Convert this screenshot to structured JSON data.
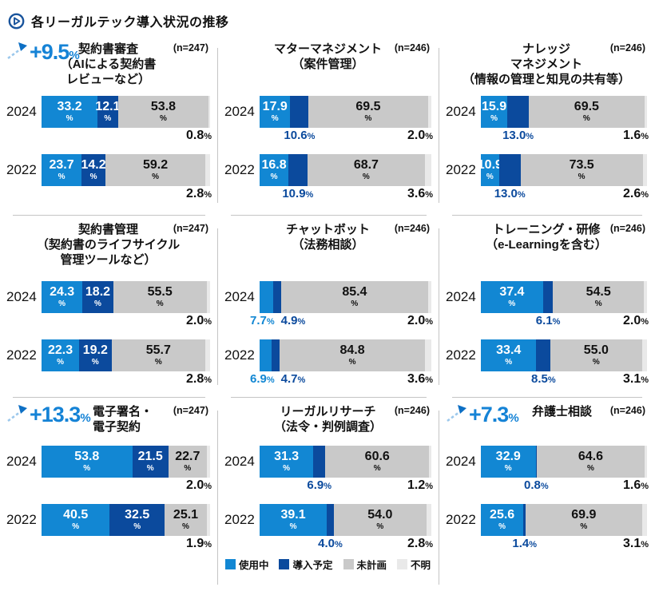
{
  "page": {
    "title": "各リーガルテック導入状況の推移"
  },
  "colors": {
    "in_use": "#1287d3",
    "planned": "#0b4a9d",
    "not_planned": "#c9c9c9",
    "unknown": "#e9e9e9",
    "delta_text": "#1583d6",
    "divider": "#c5c5c5",
    "icon_blue": "#19549c"
  },
  "legend": {
    "items": [
      {
        "label": "使用中",
        "color": "#1287d3"
      },
      {
        "label": "導入予定",
        "color": "#0b4a9d"
      },
      {
        "label": "未計画",
        "color": "#c9c9c9"
      },
      {
        "label": "不明",
        "color": "#e9e9e9"
      }
    ]
  },
  "chart_data": {
    "type": "bar",
    "stacked": true,
    "orientation": "horizontal",
    "unit": "%",
    "categories": [
      "使用中",
      "導入予定",
      "未計画",
      "不明"
    ],
    "panels": [
      {
        "title_lines": [
          "契約書審査",
          "（AIによる契約書",
          "レビューなど）"
        ],
        "n_label": "(n=247)",
        "delta": "+9.5%",
        "label_mode": [
          "inside",
          "inside"
        ],
        "rows": [
          {
            "year": "2024",
            "values": [
              "33.2",
              "12.1",
              "53.8",
              "0.8"
            ]
          },
          {
            "year": "2022",
            "values": [
              "23.7",
              "14.2",
              "59.2",
              "2.8"
            ]
          }
        ]
      },
      {
        "title_lines": [
          "マターマネジメント",
          "（案件管理）"
        ],
        "n_label": "(n=246)",
        "delta": null,
        "label_mode": [
          "inside",
          "below"
        ],
        "rows": [
          {
            "year": "2024",
            "values": [
              "17.9",
              "10.6",
              "69.5",
              "2.0"
            ]
          },
          {
            "year": "2022",
            "values": [
              "16.8",
              "10.9",
              "68.7",
              "3.6"
            ]
          }
        ]
      },
      {
        "title_lines": [
          "ナレッジ",
          "マネジメント",
          "（情報の管理と知見の共有等）"
        ],
        "n_label": "(n=246)",
        "delta": null,
        "label_mode": [
          "inside",
          "below"
        ],
        "rows": [
          {
            "year": "2024",
            "values": [
              "15.9",
              "13.0",
              "69.5",
              "1.6"
            ]
          },
          {
            "year": "2022",
            "values": [
              "10.9",
              "13.0",
              "73.5",
              "2.6"
            ]
          }
        ]
      },
      {
        "title_lines": [
          "契約書管理",
          "（契約書のライフサイクル",
          "管理ツールなど）"
        ],
        "n_label": "(n=247)",
        "delta": null,
        "label_mode": [
          "inside",
          "inside"
        ],
        "rows": [
          {
            "year": "2024",
            "values": [
              "24.3",
              "18.2",
              "55.5",
              "2.0"
            ]
          },
          {
            "year": "2022",
            "values": [
              "22.3",
              "19.2",
              "55.7",
              "2.8"
            ]
          }
        ]
      },
      {
        "title_lines": [
          "チャットボット",
          "（法務相談）"
        ],
        "n_label": "(n=246)",
        "delta": null,
        "label_mode": [
          "below",
          "below"
        ],
        "rows": [
          {
            "year": "2024",
            "values": [
              "7.7",
              "4.9",
              "85.4",
              "2.0"
            ]
          },
          {
            "year": "2022",
            "values": [
              "6.9",
              "4.7",
              "84.8",
              "3.6"
            ]
          }
        ]
      },
      {
        "title_lines": [
          "トレーニング・研修",
          "（e-Learningを含む）"
        ],
        "n_label": "(n=246)",
        "delta": null,
        "label_mode": [
          "inside",
          "below"
        ],
        "rows": [
          {
            "year": "2024",
            "values": [
              "37.4",
              "6.1",
              "54.5",
              "2.0"
            ]
          },
          {
            "year": "2022",
            "values": [
              "33.4",
              "8.5",
              "55.0",
              "3.1"
            ]
          }
        ]
      },
      {
        "title_lines": [
          "電子署名・",
          "電子契約"
        ],
        "n_label": "(n=247)",
        "delta": "+13.3%",
        "label_mode": [
          "inside",
          "inside"
        ],
        "rows": [
          {
            "year": "2024",
            "values": [
              "53.8",
              "21.5",
              "22.7",
              "2.0"
            ]
          },
          {
            "year": "2022",
            "values": [
              "40.5",
              "32.5",
              "25.1",
              "1.9"
            ]
          }
        ]
      },
      {
        "title_lines": [
          "リーガルリサーチ",
          "（法令・判例調査）"
        ],
        "n_label": "(n=246)",
        "delta": null,
        "label_mode": [
          "inside",
          "below"
        ],
        "show_legend": true,
        "rows": [
          {
            "year": "2024",
            "values": [
              "31.3",
              "6.9",
              "60.6",
              "1.2"
            ]
          },
          {
            "year": "2022",
            "values": [
              "39.1",
              "4.0",
              "54.0",
              "2.8"
            ]
          }
        ]
      },
      {
        "title_lines": [
          "弁護士相談"
        ],
        "n_label": "(n=246)",
        "delta": "+7.3%",
        "label_mode": [
          "inside",
          "below"
        ],
        "rows": [
          {
            "year": "2024",
            "values": [
              "32.9",
              "0.8",
              "64.6",
              "1.6"
            ]
          },
          {
            "year": "2022",
            "values": [
              "25.6",
              "1.4",
              "69.9",
              "3.1"
            ]
          }
        ]
      }
    ]
  }
}
